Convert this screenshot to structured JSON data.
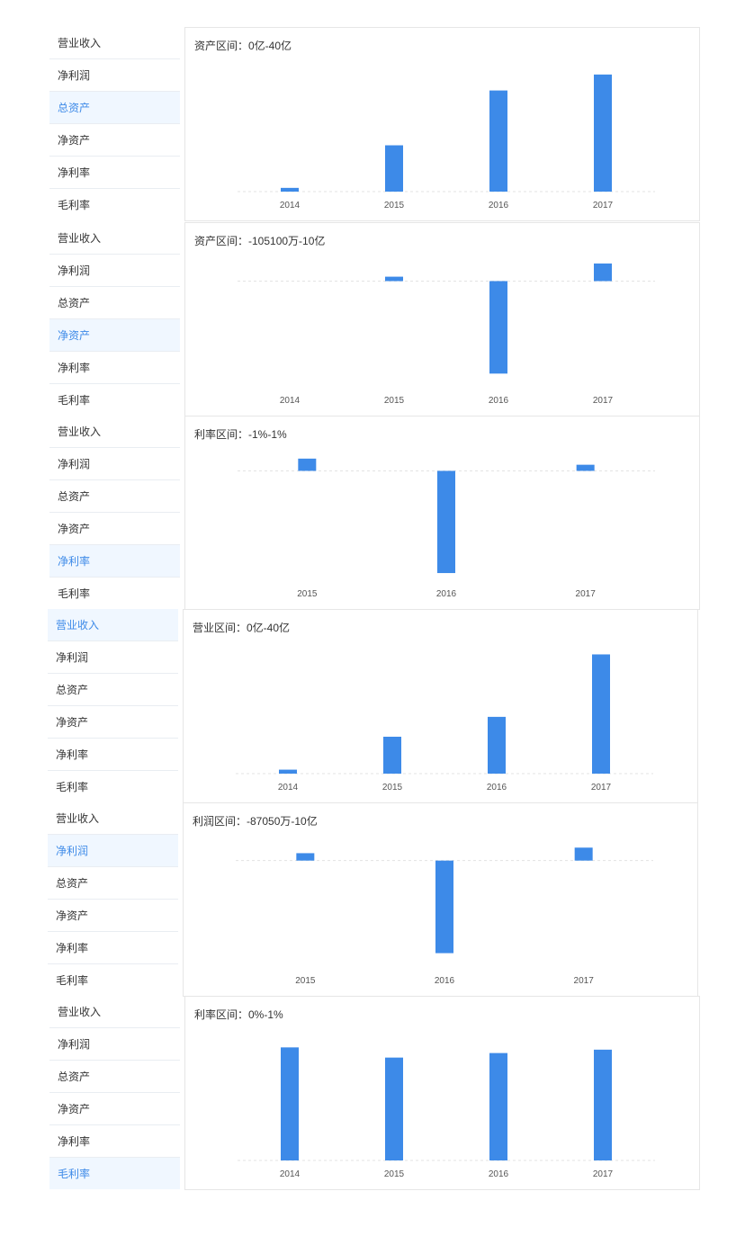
{
  "accent_color": "#3d8ae8",
  "tab_labels": [
    "营业收入",
    "净利润",
    "总资产",
    "净资产",
    "净利率",
    "毛利率"
  ],
  "widgets": [
    {
      "active_tab": 2,
      "title": "资产区间：0亿-40亿",
      "chart_data": {
        "type": "bar",
        "categories": [
          "2014",
          "2015",
          "2016",
          "2017"
        ],
        "values": [
          0.7,
          8.7,
          19.0,
          22.0
        ],
        "ylim": [
          0,
          24
        ],
        "grid": false
      }
    },
    {
      "active_tab": 3,
      "title": "资产区间：-105100万-10亿",
      "chart_data": {
        "type": "bar",
        "categories": [
          "2014",
          "2015",
          "2016",
          "2017"
        ],
        "values": [
          0,
          0.5,
          -10.5,
          2.0
        ],
        "ylim": [
          -12,
          2.5
        ],
        "grid": false
      }
    },
    {
      "active_tab": 4,
      "title": "利率区间：-1%-1%",
      "chart_data": {
        "type": "bar",
        "categories": [
          "2015",
          "2016",
          "2017"
        ],
        "values": [
          0.12,
          -1.0,
          0.06
        ],
        "ylim": [
          -1.07,
          0.18
        ],
        "grid": false
      }
    },
    {
      "active_tab": 0,
      "title": "营业区间：0亿-40亿",
      "chart_data": {
        "type": "bar",
        "categories": [
          "2014",
          "2015",
          "2016",
          "2017"
        ],
        "values": [
          0.7,
          6.5,
          10.0,
          21.0
        ],
        "ylim": [
          0,
          22.5
        ],
        "grid": false
      }
    },
    {
      "active_tab": 1,
      "title": "利润区间：-87050万-10亿",
      "chart_data": {
        "type": "bar",
        "categories": [
          "2015",
          "2016",
          "2017"
        ],
        "values": [
          0.8,
          -10.0,
          1.4
        ],
        "ylim": [
          -11.5,
          2.3
        ],
        "grid": false
      }
    },
    {
      "active_tab": 5,
      "title": "利率区间：0%-1%",
      "chart_data": {
        "type": "bar",
        "categories": [
          "2014",
          "2015",
          "2016",
          "2017"
        ],
        "values": [
          1.0,
          0.91,
          0.95,
          0.98
        ],
        "ylim": [
          0,
          1.13
        ],
        "grid": false
      }
    }
  ]
}
